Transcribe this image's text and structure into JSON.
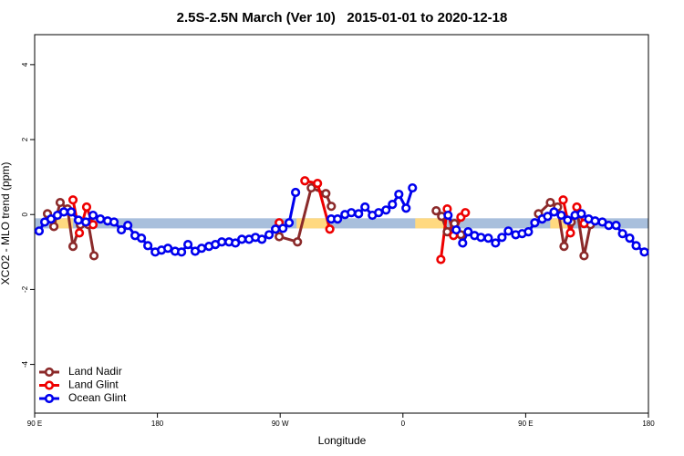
{
  "chart_data": {
    "type": "line",
    "title": "2.5S-2.5N March (Ver 10)   2015-01-01 to 2020-12-18",
    "x_label": "Longitude",
    "y_label": "XCO2 - MLO trend (ppm)",
    "xlim": [
      90,
      540
    ],
    "xticks": [
      {
        "value": 90,
        "label": "90 E"
      },
      {
        "value": 180,
        "label": "180"
      },
      {
        "value": 270,
        "label": "90 W"
      },
      {
        "value": 360,
        "label": "0"
      },
      {
        "value": 450,
        "label": "90 E"
      },
      {
        "value": 540,
        "label": "180"
      }
    ],
    "ylim": [
      -5.3,
      4.8
    ],
    "yticks": [
      -4,
      -2,
      0,
      2,
      4
    ],
    "band": [
      -0.37,
      -0.1
    ],
    "band_color": "#a8bfdc",
    "highlight_ranges": [
      [
        106,
        118
      ],
      [
        282,
        305
      ],
      [
        369,
        392
      ],
      [
        468,
        483
      ]
    ],
    "highlight_color": "#ffd980",
    "legend": "bottom-left",
    "series": [
      {
        "name": "Land Nadir",
        "color": "#8b2a2a",
        "x": [
          99.4,
          104.1,
          108.7,
          114.1,
          118.1,
          123.5,
          129.5,
          133.5,
          null,
          269.3,
          282.7,
          292.8,
          303.5,
          307.5,
          null,
          384.4,
          388.4,
          392.5,
          397.8,
          402.5,
          null,
          459.4,
          468.1,
          473.4,
          478.1,
          483.4,
          488.1,
          492.8,
          497.5
        ],
        "values": [
          0.02,
          -0.32,
          0.32,
          0.15,
          -0.85,
          -0.27,
          -0.27,
          -1.1,
          null,
          -0.59,
          -0.73,
          0.71,
          0.56,
          0.22,
          null,
          0.1,
          -0.05,
          -0.46,
          -0.24,
          -0.54,
          null,
          0.02,
          0.32,
          0.2,
          -0.85,
          -0.2,
          0.02,
          -1.1,
          -0.27
        ]
      },
      {
        "name": "Land Glint",
        "color": "#ee0000",
        "x": [
          118.1,
          122.8,
          128.1,
          132.8,
          null,
          269.3,
          null,
          288.1,
          297.4,
          306.4,
          null,
          387.8,
          392.5,
          397.1,
          402.5,
          405.8,
          null,
          477.5,
          482.8,
          487.5,
          492.8
        ],
        "values": [
          0.39,
          -0.49,
          0.2,
          -0.27,
          null,
          -0.22,
          null,
          0.9,
          0.83,
          -0.39,
          null,
          -1.2,
          0.15,
          -0.56,
          -0.07,
          0.05,
          null,
          0.39,
          -0.49,
          0.2,
          -0.24
        ]
      },
      {
        "name": "Ocean Glint",
        "color": "#0000ee",
        "x": [
          93.3,
          97.4,
          102.0,
          106.7,
          111.4,
          116.8,
          122.1,
          127.5,
          132.8,
          138.2,
          143.5,
          148.2,
          153.6,
          158.3,
          163.6,
          168.3,
          173.0,
          178.4,
          183.0,
          187.7,
          193.0,
          197.7,
          202.4,
          207.7,
          212.4,
          217.8,
          222.5,
          227.2,
          232.5,
          237.2,
          241.9,
          247.2,
          251.9,
          256.6,
          261.9,
          266.6,
          272.0,
          276.6,
          281.3,
          null,
          307.4,
          312.1,
          317.5,
          322.2,
          327.5,
          332.2,
          337.6,
          342.2,
          347.6,
          352.3,
          357.0,
          362.3,
          367.0,
          null,
          393.1,
          399.1,
          403.8,
          407.8,
          412.5,
          417.2,
          422.6,
          427.9,
          432.6,
          437.3,
          442.7,
          447.4,
          452.0,
          456.7,
          462.1,
          466.1,
          470.8,
          476.1,
          480.8,
          486.2,
          490.8,
          496.2,
          500.9,
          506.2,
          510.9,
          516.3,
          521.0,
          526.3,
          531.0,
          537.0
        ],
        "values": [
          -0.44,
          -0.2,
          -0.12,
          -0.02,
          0.07,
          0.07,
          -0.15,
          -0.2,
          -0.02,
          -0.12,
          -0.17,
          -0.2,
          -0.41,
          -0.29,
          -0.56,
          -0.63,
          -0.83,
          -1.0,
          -0.95,
          -0.9,
          -0.98,
          -1.0,
          -0.8,
          -0.98,
          -0.9,
          -0.85,
          -0.8,
          -0.73,
          -0.73,
          -0.76,
          -0.66,
          -0.66,
          -0.61,
          -0.66,
          -0.54,
          -0.39,
          -0.37,
          -0.22,
          0.59,
          null,
          -0.12,
          -0.12,
          0.0,
          0.05,
          0.02,
          0.2,
          -0.02,
          0.05,
          0.12,
          0.27,
          0.54,
          0.17,
          0.71,
          null,
          -0.02,
          -0.41,
          -0.76,
          -0.46,
          -0.56,
          -0.61,
          -0.63,
          -0.76,
          -0.61,
          -0.44,
          -0.54,
          -0.51,
          -0.46,
          -0.22,
          -0.12,
          -0.05,
          0.07,
          -0.02,
          -0.15,
          -0.02,
          0.02,
          -0.12,
          -0.17,
          -0.2,
          -0.29,
          -0.29,
          -0.51,
          -0.63,
          -0.83,
          -1.0
        ]
      }
    ]
  }
}
